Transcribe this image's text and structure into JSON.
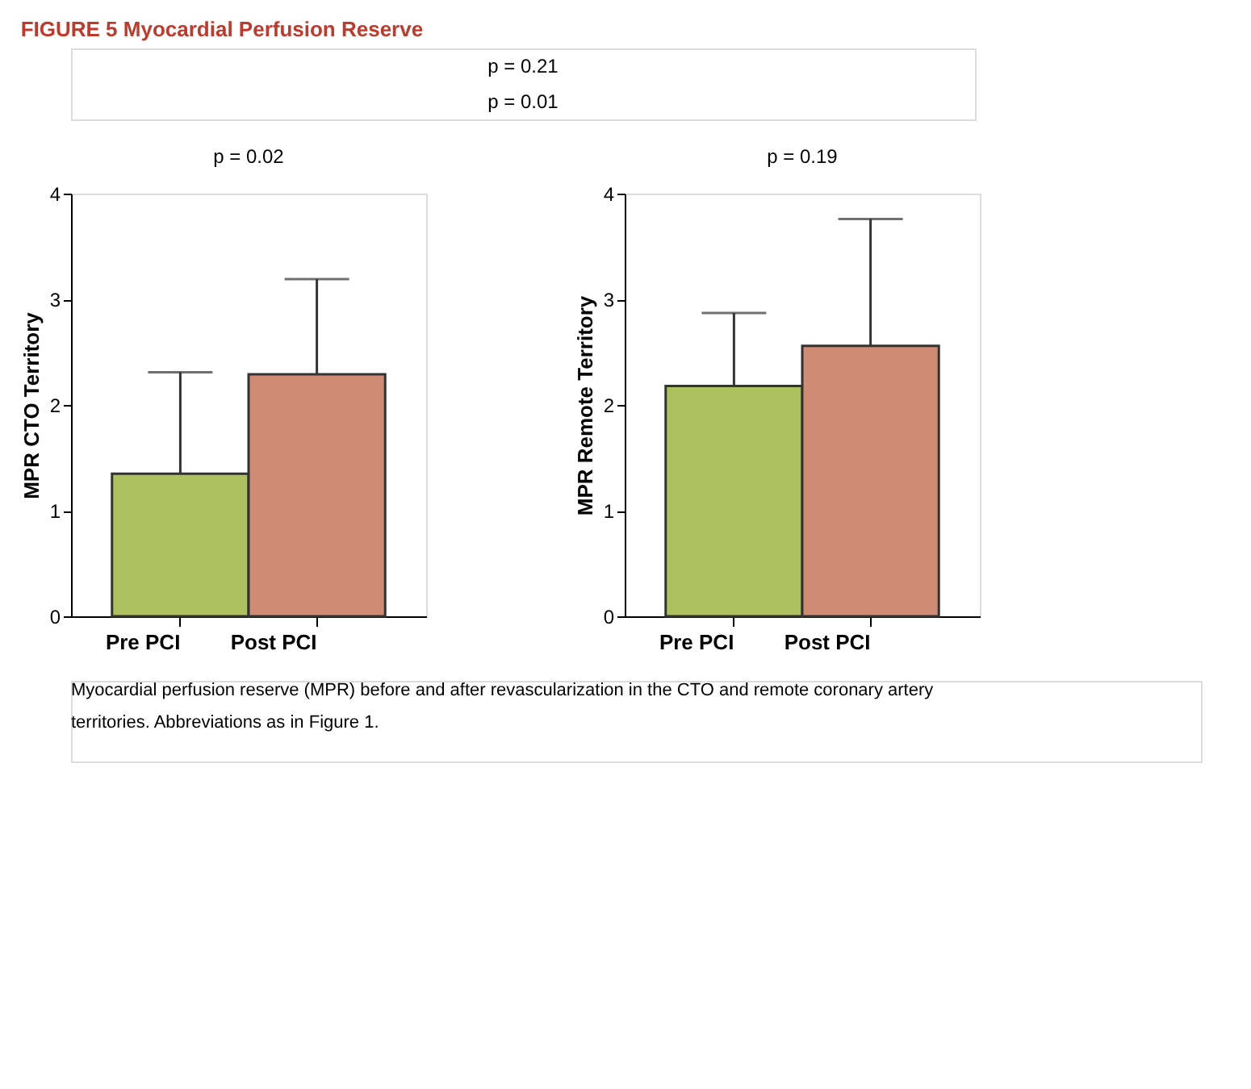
{
  "chart_data": [
    {
      "type": "bar",
      "title": "FIGURE 5 Myocardial Perfusion Reserve",
      "ylabel": "MPR CTO Territory",
      "categories": [
        "Pre PCI",
        "Post PCI"
      ],
      "values": [
        1.35,
        2.29
      ],
      "colors": [
        "#adc15f",
        "#d08b74"
      ],
      "errors": [
        [
          1.35,
          2.31
        ],
        [
          2.29,
          3.19
        ]
      ],
      "ylim": [
        0,
        4
      ],
      "yticks": [
        0,
        1,
        2,
        3,
        4
      ],
      "grid": false,
      "annotations": [
        "p = 0.21",
        "p = 0.01",
        "p = 0.02"
      ]
    },
    {
      "type": "bar",
      "ylabel": "MPR Remote Territory",
      "categories": [
        "Pre PCI",
        "Post PCI"
      ],
      "values": [
        2.18,
        2.56
      ],
      "colors": [
        "#adc15f",
        "#d08b74"
      ],
      "errors": [
        [
          2.18,
          2.87
        ],
        [
          2.56,
          3.76
        ]
      ],
      "ylim": [
        0,
        4
      ],
      "yticks": [
        0,
        1,
        2,
        3,
        4
      ],
      "grid": false,
      "annotations": [
        "p = 0.19",
        "Myocardial perfusion reserve (MPR) before and after revascularization in the CTO and remote coronary artery territories. Abbreviations as in Figure 1."
      ]
    }
  ]
}
